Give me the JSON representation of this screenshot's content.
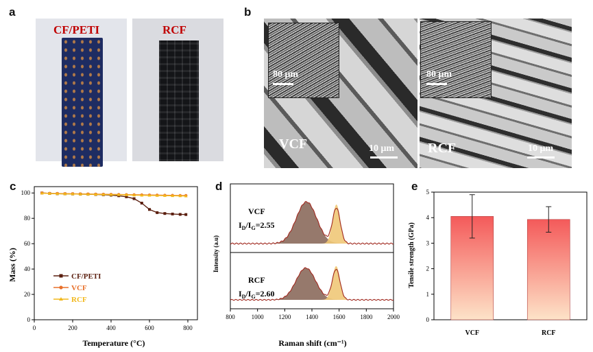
{
  "panels": {
    "a": "a",
    "b": "b",
    "c": "c",
    "d": "d",
    "e": "e"
  },
  "panel_a": {
    "left_label": "CF/PETI",
    "right_label": "RCF",
    "label_color": "#c00000",
    "left_photo_colors": {
      "background": "#e2e4ea",
      "specimen": "#1e2c60"
    },
    "right_photo_colors": {
      "background": "#dadbe0",
      "specimen": "#111216"
    }
  },
  "panel_b": {
    "left": {
      "label": "VCF",
      "inset_scale": "80 μm",
      "main_scale": "10 μm"
    },
    "right": {
      "label": "RCF",
      "inset_scale": "80 μm",
      "main_scale": "10 μm"
    }
  },
  "chart_data": [
    {
      "type": "line",
      "panel": "c",
      "xlabel": "Temperature (°C)",
      "ylabel": "Mass (%)",
      "xlim": [
        0,
        850
      ],
      "ylim": [
        0,
        105
      ],
      "xticks": [
        "0",
        "200",
        "400",
        "600",
        "800"
      ],
      "yticks": [
        "0",
        "20",
        "40",
        "60",
        "80",
        "100"
      ],
      "legend_position": "bottom-left",
      "series": [
        {
          "name": "CF/PETI",
          "color": "#5a1e0e",
          "marker": "square",
          "x": [
            40,
            80,
            120,
            160,
            200,
            240,
            280,
            320,
            360,
            400,
            440,
            480,
            520,
            560,
            600,
            640,
            680,
            720,
            760,
            790
          ],
          "y": [
            100,
            99.6,
            99.4,
            99.3,
            99.2,
            99.1,
            99.0,
            98.8,
            98.6,
            98.3,
            97.8,
            97.0,
            95.5,
            92,
            87,
            84.5,
            83.8,
            83.4,
            83.1,
            83.0
          ]
        },
        {
          "name": "VCF",
          "color": "#e8702a",
          "marker": "circle",
          "x": [
            40,
            80,
            120,
            160,
            200,
            240,
            280,
            320,
            360,
            400,
            440,
            480,
            520,
            560,
            600,
            640,
            680,
            720,
            760,
            790
          ],
          "y": [
            100,
            99.7,
            99.6,
            99.5,
            99.4,
            99.3,
            99.2,
            99.1,
            99.0,
            98.9,
            98.8,
            98.7,
            98.6,
            98.5,
            98.4,
            98.3,
            98.2,
            98.1,
            98.0,
            98.0
          ]
        },
        {
          "name": "RCF",
          "color": "#f2b81c",
          "marker": "triangle",
          "x": [
            40,
            80,
            120,
            160,
            200,
            240,
            280,
            320,
            360,
            400,
            440,
            480,
            520,
            560,
            600,
            640,
            680,
            720,
            760,
            790
          ],
          "y": [
            99.8,
            99.6,
            99.4,
            99.3,
            99.2,
            99.1,
            99.0,
            98.9,
            98.8,
            98.7,
            98.6,
            98.5,
            98.3,
            98.2,
            98.1,
            98.0,
            97.9,
            97.8,
            97.7,
            97.6
          ]
        }
      ]
    },
    {
      "type": "line",
      "panel": "d",
      "xlabel": "Raman shift (cm⁻¹)",
      "ylabel": "Intensity (a.u)",
      "xlim": [
        800,
        2000
      ],
      "xticks": [
        "800",
        "1000",
        "1200",
        "1400",
        "1600",
        "1800",
        "2000"
      ],
      "spectra": [
        {
          "label": "VCF",
          "ratio_label": "I",
          "ratio_sub1": "D",
          "ratio_mid": "/I",
          "ratio_sub2": "G",
          "ratio_value": "=2.55",
          "d_band": {
            "center": 1360,
            "width": 105,
            "height": 0.8
          },
          "g_band": {
            "center": 1580,
            "width": 40,
            "height": 0.75
          },
          "fill_d": "#8b6a5c",
          "fill_g": "#f0c878",
          "line_color": "#a0281e"
        },
        {
          "label": "RCF",
          "ratio_label": "I",
          "ratio_sub1": "D",
          "ratio_mid": "/I",
          "ratio_sub2": "G",
          "ratio_value": "=2.60",
          "d_band": {
            "center": 1355,
            "width": 100,
            "height": 0.8
          },
          "g_band": {
            "center": 1578,
            "width": 40,
            "height": 0.85
          },
          "fill_d": "#8b6a5c",
          "fill_g": "#f0c878",
          "line_color": "#a0281e"
        }
      ]
    },
    {
      "type": "bar",
      "panel": "e",
      "categories": [
        "VCF",
        "RCF"
      ],
      "values": [
        4.05,
        3.93
      ],
      "errors": [
        0.85,
        0.5
      ],
      "ylabel": "Tensile strength (GPa)",
      "ylim": [
        0,
        5
      ],
      "yticks": [
        "0",
        "1",
        "2",
        "3",
        "4",
        "5"
      ],
      "bar_gradient": [
        "#f45a5a",
        "#fde3c8"
      ]
    }
  ]
}
